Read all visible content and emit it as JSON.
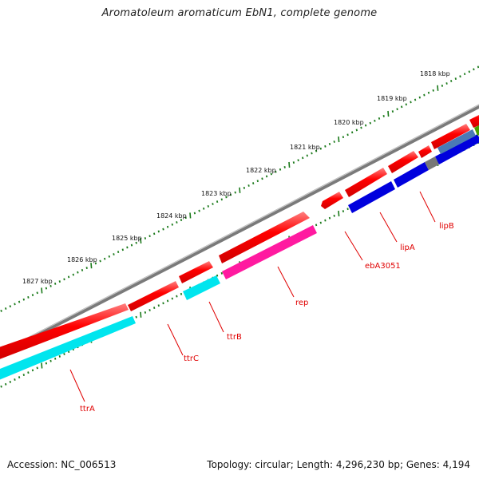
{
  "title": "Aromatoleum aromaticum EbN1, complete genome",
  "footer": {
    "accession_prefix": "Accession:",
    "accession": "NC_006513",
    "topology_prefix": "Topology:",
    "topology": "circular",
    "length_prefix": "Length:",
    "length": "4,296,230 bp",
    "genes_prefix": "Genes:",
    "genes": "4,194"
  },
  "colors": {
    "backbone": "#8a8a8a",
    "gene_arrow": "#ff0000",
    "gene_arrow_highlight": "#ff7070",
    "cds_cyan": "#00e5ee",
    "cds_pink": "#ff1aa0",
    "cds_blue": "#0000dd",
    "cds_steel": "#4a7ab5",
    "cds_gray": "#777777",
    "cds_green": "#4aa000",
    "tick_green": "#1a7a1a",
    "label_red": "#e00000"
  },
  "scale": {
    "unit": "kbp",
    "labels": [
      "1818 kbp",
      "1819 kbp",
      "1820 kbp",
      "1821 kbp",
      "1822 kbp",
      "1823 kbp",
      "1824 kbp",
      "1825 kbp",
      "1826 kbp",
      "1827 kbp"
    ]
  },
  "gene_labels": [
    "ttrA",
    "ttrC",
    "ttrB",
    "rep",
    "ebA3051",
    "lipA",
    "lipB"
  ]
}
